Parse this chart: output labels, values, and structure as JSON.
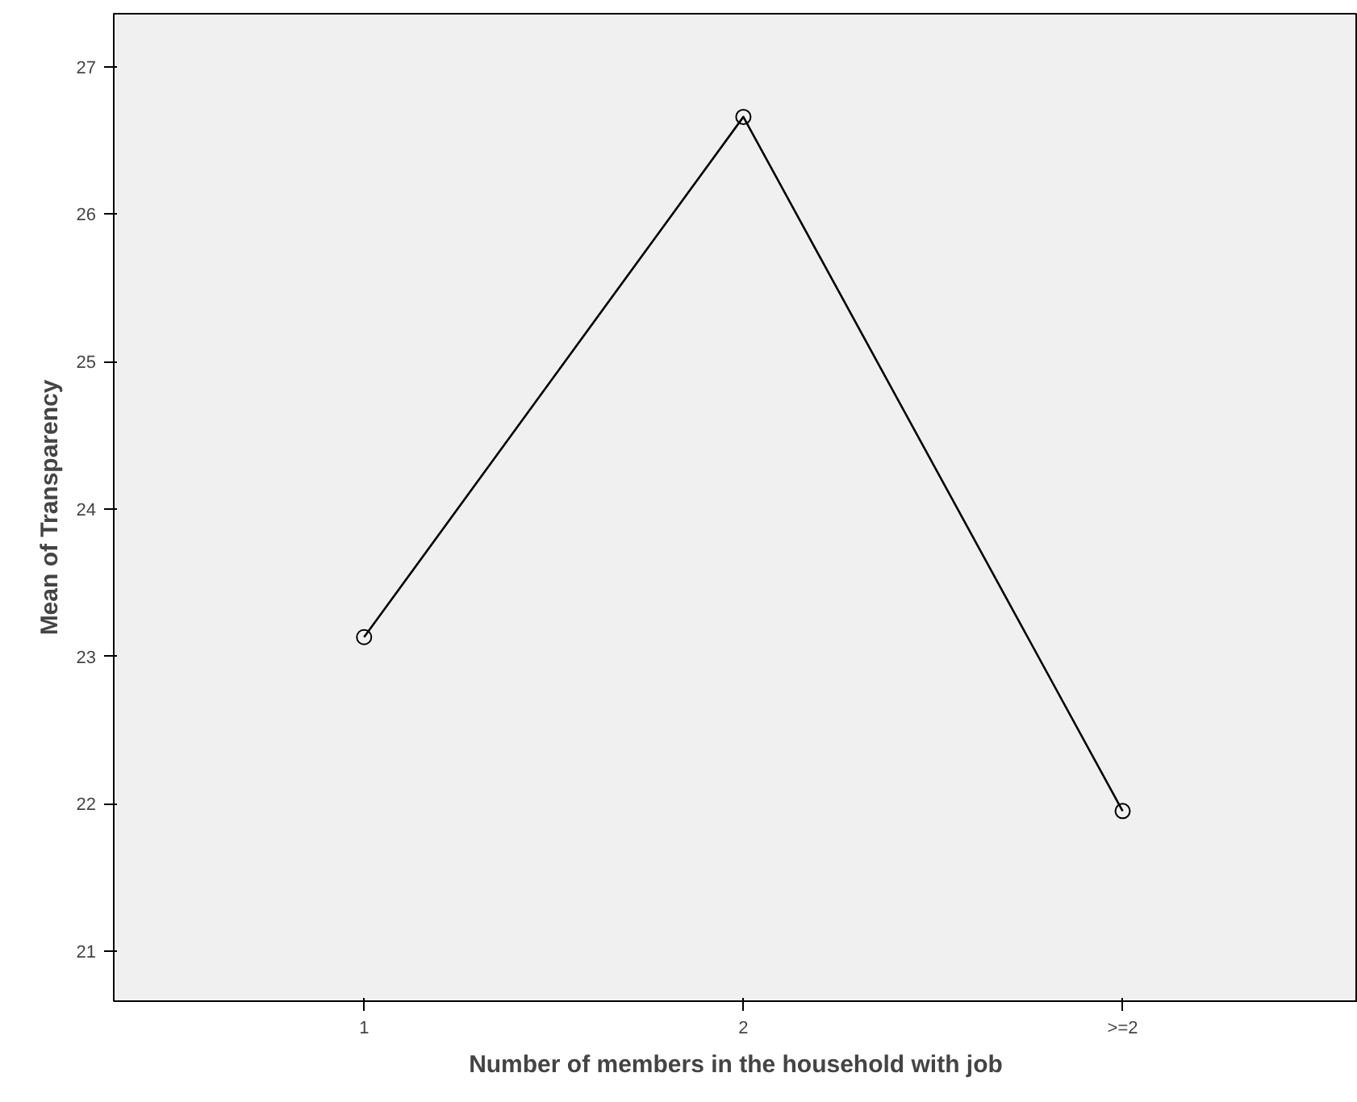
{
  "chart_data": {
    "type": "line",
    "xlabel": "Number of members in the household with job",
    "ylabel": "Mean of Transparency",
    "categories": [
      "1",
      "2",
      ">=2"
    ],
    "series": [
      {
        "color": "#000000",
        "values": [
          23.13,
          26.66,
          21.95
        ]
      }
    ],
    "ylim": [
      20.66,
      27.36
    ],
    "yticks": [
      21,
      22,
      23,
      24,
      25,
      26,
      27
    ],
    "grid": false,
    "marker": "circle",
    "line_style": "solid"
  }
}
